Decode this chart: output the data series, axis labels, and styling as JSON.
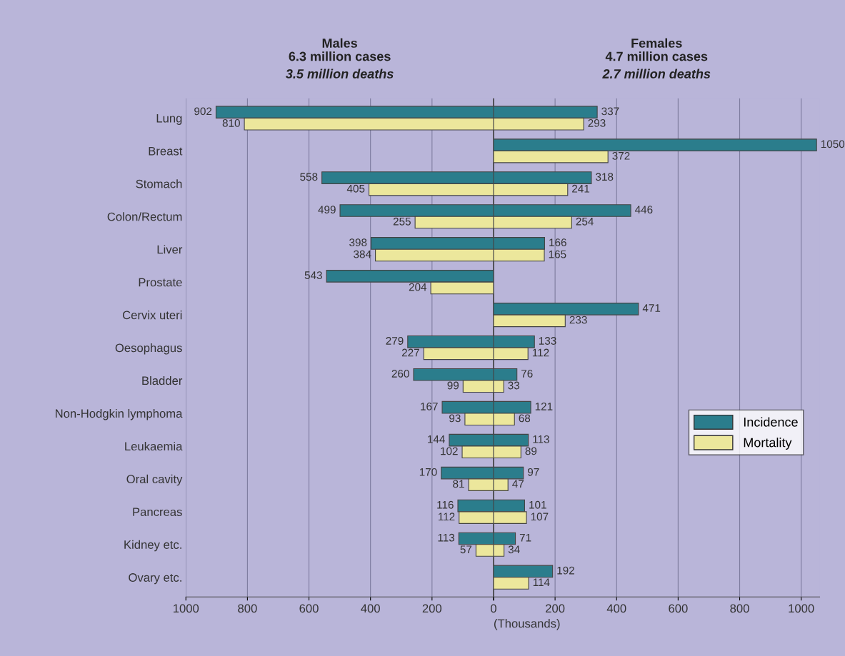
{
  "chart_data": [
    {
      "type": "bar",
      "orientation": "horizontal",
      "title": "Males",
      "annotations": [
        "6.3 million cases",
        "3.5 million deaths"
      ],
      "categories": [
        "Lung",
        "Breast",
        "Stomach",
        "Colon/Rectum",
        "Liver",
        "Prostate",
        "Cervix uteri",
        "Oesophagus",
        "Bladder",
        "Non-Hodgkin lymphoma",
        "Leukaemia",
        "Oral cavity",
        "Pancreas",
        "Kidney etc.",
        "Ovary etc."
      ],
      "series": [
        {
          "color": "#2b7d8c",
          "values": [
            902,
            null,
            558,
            499,
            398,
            543,
            null,
            279,
            260,
            167,
            144,
            170,
            116,
            113,
            null
          ]
        },
        {
          "color": "#ece79c",
          "values": [
            810,
            null,
            405,
            255,
            384,
            204,
            null,
            227,
            99,
            93,
            102,
            81,
            112,
            57,
            null
          ]
        }
      ],
      "xlim": [
        1000,
        0
      ],
      "xticks": [
        1000,
        800,
        600,
        400,
        200,
        {
          "value": 0,
          "label": null
        }
      ],
      "grid": "x",
      "data_labels": true
    },
    {
      "type": "bar",
      "orientation": "horizontal",
      "title": "Females",
      "annotations": [
        "4.7 million cases",
        "2.7 million deaths"
      ],
      "xlabel": "(Thousands)",
      "series": [
        {
          "name": "Incidence",
          "color": "#2b7d8c",
          "values": [
            337,
            1050,
            318,
            446,
            166,
            null,
            471,
            133,
            76,
            121,
            113,
            97,
            101,
            71,
            192
          ]
        },
        {
          "name": "Mortality",
          "color": "#ece79c",
          "values": [
            293,
            372,
            241,
            254,
            165,
            null,
            233,
            112,
            33,
            68,
            89,
            47,
            107,
            34,
            114
          ]
        }
      ],
      "xlim": [
        0,
        1060
      ],
      "xticks": [
        0,
        200,
        400,
        600,
        800,
        1000
      ],
      "grid": "x",
      "data_labels": true,
      "tick_labels": "x",
      "legend": "right"
    }
  ]
}
